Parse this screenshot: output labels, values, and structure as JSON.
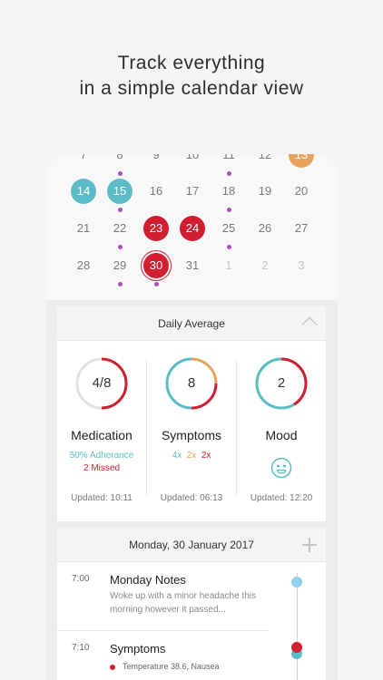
{
  "headline": {
    "line1": "Track everything",
    "line2": "in a simple calendar view"
  },
  "calendar": {
    "rows": [
      [
        {
          "d": "7"
        },
        {
          "d": "8",
          "dot": true
        },
        {
          "d": "9"
        },
        {
          "d": "10"
        },
        {
          "d": "11",
          "dot": true
        },
        {
          "d": "12"
        },
        {
          "d": "13",
          "style": "orange"
        }
      ],
      [
        {
          "d": "14",
          "style": "teal"
        },
        {
          "d": "15",
          "style": "teal",
          "dot": true
        },
        {
          "d": "16"
        },
        {
          "d": "17"
        },
        {
          "d": "18",
          "dot": true
        },
        {
          "d": "19"
        },
        {
          "d": "20"
        }
      ],
      [
        {
          "d": "21"
        },
        {
          "d": "22",
          "dot": true
        },
        {
          "d": "23",
          "style": "red"
        },
        {
          "d": "24",
          "style": "red"
        },
        {
          "d": "25",
          "dot": true
        },
        {
          "d": "26"
        },
        {
          "d": "27"
        }
      ],
      [
        {
          "d": "28"
        },
        {
          "d": "29",
          "dot": true
        },
        {
          "d": "30",
          "style": "ring",
          "dot": true
        },
        {
          "d": "31"
        },
        {
          "d": "1",
          "style": "faded"
        },
        {
          "d": "2",
          "style": "faded"
        },
        {
          "d": "3",
          "style": "faded"
        }
      ]
    ]
  },
  "daily_average": {
    "title": "Daily Average",
    "medication": {
      "value": "4/8",
      "label": "Medication",
      "adherence": "50% Adherance",
      "missed": "2 Missed",
      "updated": "Updated: 10:11",
      "fraction": 0.5
    },
    "symptoms": {
      "value": "8",
      "label": "Symptoms",
      "counts": [
        "4x",
        "2x",
        "2x"
      ],
      "updated": "Updated: 06:13"
    },
    "mood": {
      "value": "2",
      "label": "Mood",
      "updated": "Updated: 12:20",
      "face_icon": "smiley-face-icon"
    }
  },
  "day_view": {
    "date": "Monday, 30 January 2017",
    "entries": [
      {
        "time": "7:00",
        "title": "Monday Notes",
        "desc": "Woke up with a minor headache this morning however it passed..."
      },
      {
        "time": "7:10",
        "title": "Symptoms",
        "detail": "Temperature 38.6, Nausea"
      }
    ]
  },
  "colors": {
    "teal": "#5bbcc7",
    "red": "#d0202f",
    "orange": "#e8a45c",
    "purple": "#b04bc3",
    "light_blue": "#8fd0ea"
  }
}
